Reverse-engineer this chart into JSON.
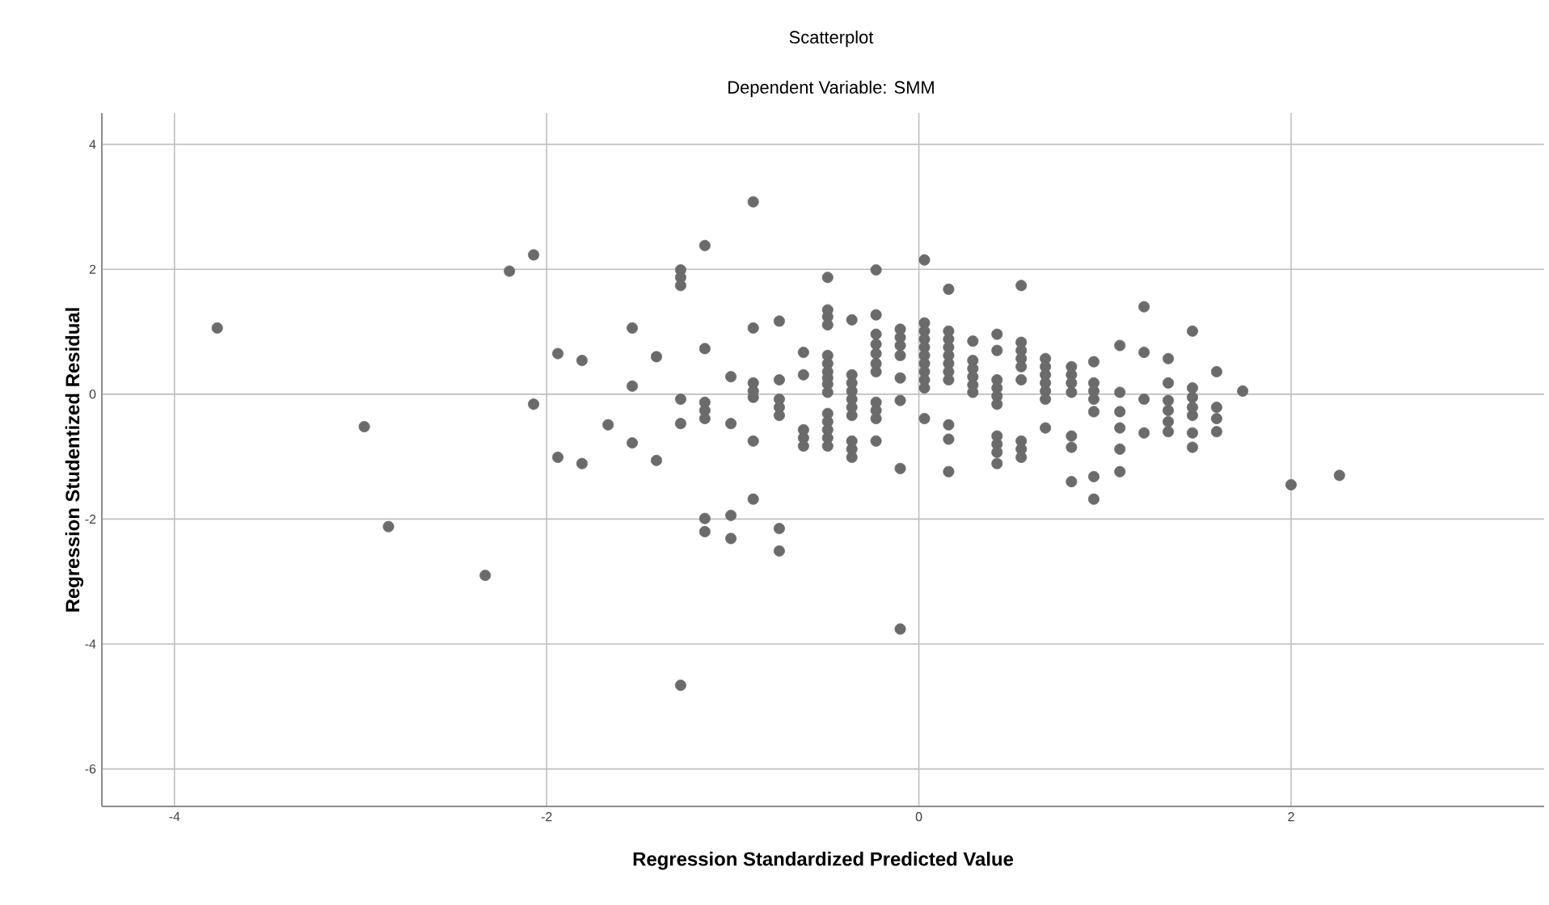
{
  "chart_data": {
    "type": "scatter",
    "title": "Scatterplot",
    "subtitle": "Dependent Variable: SMM",
    "xlabel": "Regression Standardized Predicted Value",
    "ylabel": "Regression Studentized Residual",
    "xlim": [
      -4.39,
      3.36
    ],
    "ylim": [
      -6.6,
      4.5
    ],
    "xticks": [
      -4,
      -2,
      0,
      2
    ],
    "yticks": [
      4,
      2,
      0,
      -2,
      -4,
      -6
    ],
    "grid": true,
    "marker": "circle",
    "color": "#6b6b6b",
    "x": [
      -3.77,
      -2.98,
      -2.85,
      -2.33,
      -2.2,
      -2.07,
      -2.07,
      -1.94,
      -1.81,
      -1.54,
      -1.54,
      -1.67,
      -1.54,
      -1.94,
      -1.81,
      -1.41,
      -1.41,
      -1.28,
      -1.28,
      -1.28,
      -1.28,
      -1.28,
      -1.28,
      -1.15,
      -1.15,
      -1.15,
      -1.15,
      -1.15,
      -1.15,
      -1.15,
      -1.01,
      -1.01,
      -1.01,
      -1.01,
      -0.89,
      -0.89,
      -0.89,
      -0.89,
      -0.89,
      -0.89,
      -0.89,
      -0.75,
      -0.75,
      -0.75,
      -0.75,
      -0.75,
      -0.75,
      -0.75,
      -0.62,
      -0.62,
      -0.62,
      -0.62,
      -0.62,
      -0.49,
      -0.49,
      -0.49,
      -0.49,
      -0.49,
      -0.49,
      -0.49,
      -0.49,
      -0.49,
      -0.49,
      -0.49,
      -0.49,
      -0.49,
      -0.49,
      -0.49,
      -0.36,
      -0.36,
      -0.36,
      -0.36,
      -0.36,
      -0.36,
      -0.36,
      -0.36,
      -0.36,
      -0.36,
      -0.23,
      -0.23,
      -0.23,
      -0.23,
      -0.23,
      -0.23,
      -0.23,
      -0.23,
      -0.23,
      -0.23,
      -0.23,
      -0.1,
      -0.1,
      -0.1,
      -0.1,
      -0.1,
      -0.1,
      -0.1,
      -0.1,
      0.03,
      0.03,
      0.03,
      0.03,
      0.03,
      0.03,
      0.03,
      0.03,
      0.03,
      0.03,
      0.03,
      0.16,
      0.16,
      0.16,
      0.16,
      0.16,
      0.16,
      0.16,
      0.16,
      0.16,
      0.16,
      0.16,
      0.29,
      0.29,
      0.29,
      0.29,
      0.29,
      0.29,
      0.42,
      0.42,
      0.42,
      0.42,
      0.42,
      0.42,
      0.42,
      0.42,
      0.42,
      0.42,
      0.55,
      0.55,
      0.55,
      0.55,
      0.55,
      0.55,
      0.55,
      0.55,
      0.55,
      0.68,
      0.68,
      0.68,
      0.68,
      0.68,
      0.68,
      0.68,
      0.82,
      0.82,
      0.82,
      0.82,
      0.82,
      0.82,
      0.82,
      0.94,
      0.94,
      0.94,
      0.94,
      0.94,
      0.94,
      0.94,
      1.08,
      1.08,
      1.08,
      1.08,
      1.08,
      1.08,
      1.21,
      1.21,
      1.21,
      1.21,
      1.34,
      1.34,
      1.34,
      1.34,
      1.34,
      1.34,
      1.47,
      1.47,
      1.47,
      1.47,
      1.47,
      1.47,
      1.47,
      1.6,
      1.6,
      1.6,
      1.6,
      1.74,
      2.0,
      2.26
    ],
    "values": [
      1.06,
      -0.52,
      -2.12,
      -2.9,
      1.97,
      2.23,
      -0.16,
      0.65,
      0.54,
      1.06,
      0.13,
      -0.49,
      -0.78,
      -1.01,
      -1.11,
      0.6,
      -1.06,
      1.99,
      1.87,
      1.74,
      -0.08,
      -0.47,
      -4.66,
      2.38,
      0.73,
      -0.13,
      -0.26,
      -0.39,
      -1.99,
      -2.2,
      0.28,
      -0.47,
      -1.94,
      -2.31,
      3.08,
      1.06,
      0.18,
      0.05,
      -0.05,
      -0.75,
      -1.68,
      1.17,
      0.23,
      -0.08,
      -0.21,
      -0.34,
      -2.15,
      -2.51,
      0.67,
      0.31,
      -0.57,
      -0.7,
      -0.83,
      1.87,
      1.35,
      1.24,
      1.11,
      0.62,
      0.49,
      0.36,
      0.26,
      0.16,
      0.03,
      -0.31,
      -0.44,
      -0.57,
      -0.7,
      -0.83,
      1.19,
      0.31,
      0.18,
      0.05,
      -0.08,
      -0.21,
      -0.34,
      -0.75,
      -0.88,
      -1.01,
      1.99,
      1.27,
      0.96,
      0.8,
      0.65,
      0.49,
      0.36,
      -0.13,
      -0.26,
      -0.39,
      -0.75,
      1.04,
      0.91,
      0.78,
      0.62,
      0.26,
      -0.1,
      -1.19,
      -3.76,
      2.15,
      1.14,
      1.01,
      0.88,
      0.75,
      0.62,
      0.49,
      0.36,
      0.23,
      0.1,
      -0.39,
      1.68,
      1.01,
      0.88,
      0.75,
      0.62,
      0.49,
      0.36,
      0.23,
      -0.49,
      -0.72,
      -1.24,
      0.85,
      0.54,
      0.41,
      0.28,
      0.15,
      0.03,
      0.96,
      0.7,
      0.23,
      0.1,
      -0.03,
      -0.16,
      -0.67,
      -0.8,
      -0.93,
      -1.11,
      1.74,
      0.83,
      0.7,
      0.57,
      0.44,
      0.23,
      -0.75,
      -0.88,
      -1.01,
      0.57,
      0.44,
      0.31,
      0.18,
      0.05,
      -0.08,
      -0.54,
      0.44,
      0.31,
      0.18,
      0.03,
      -0.67,
      -0.85,
      -1.4,
      0.52,
      0.18,
      0.05,
      -0.08,
      -0.28,
      -1.32,
      -1.68,
      0.78,
      0.03,
      -0.28,
      -0.54,
      -0.88,
      -1.24,
      1.4,
      0.67,
      -0.08,
      -0.62,
      0.57,
      0.18,
      -0.1,
      -0.26,
      -0.44,
      -0.6,
      1.01,
      0.1,
      -0.05,
      -0.21,
      -0.34,
      -0.62,
      -0.85,
      0.36,
      -0.21,
      -0.39,
      -0.6,
      0.05,
      -1.45,
      -1.3
    ]
  }
}
